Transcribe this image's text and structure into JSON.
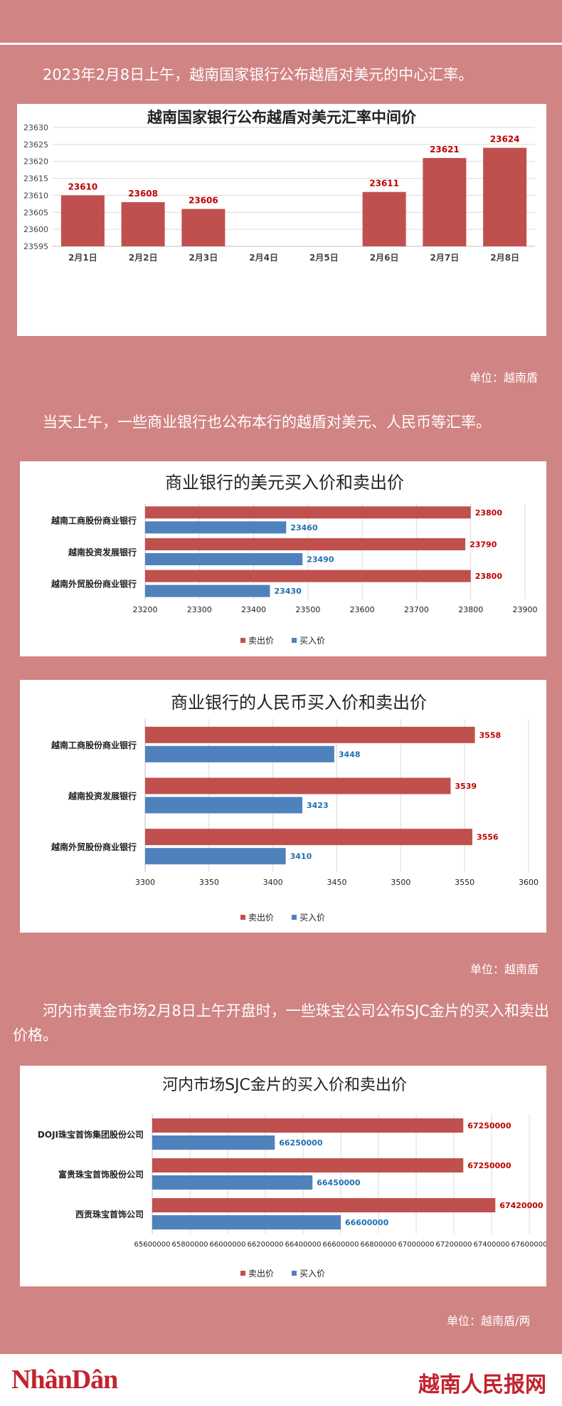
{
  "intro1": "2023年2月8日上午，越南国家银行公布越盾对美元的中心汇率。",
  "unit1": "单位：越南盾",
  "intro2": "当天上午，一些商业银行也公布本行的越盾对美元、人民币等汇率。",
  "unit2": "单位：越南盾",
  "intro3": "河内市黄金市场2月8日上午开盘时，一些珠宝公司公布SJC金片的买入和卖出价格。",
  "unit3": "单位：越南盾/两",
  "footer": {
    "logo_left": "NhânDân",
    "logo_right": "越南人民报网"
  },
  "colors": {
    "sell": "#c0504d",
    "buy": "#4f81bd",
    "sell_label": "#c00000",
    "buy_label": "#1f6fb4"
  },
  "chart_data": [
    {
      "type": "bar",
      "title": "越南国家银行公布越盾对美元汇率中间价",
      "categories": [
        "2月1日",
        "2月2日",
        "2月3日",
        "2月4日",
        "2月5日",
        "2月6日",
        "2月7日",
        "2月8日"
      ],
      "values": [
        23610,
        23608,
        23606,
        null,
        null,
        23611,
        23621,
        23624
      ],
      "ylim": [
        23595,
        23630
      ],
      "yticks": [
        23595,
        23600,
        23605,
        23610,
        23615,
        23620,
        23625,
        23630
      ],
      "grid": true
    },
    {
      "type": "bar",
      "orientation": "horizontal",
      "title": "商业银行的美元买入价和卖出价",
      "categories": [
        "越南工商股份商业银行",
        "越南投资发展银行",
        "越南外贸股份商业银行"
      ],
      "series": [
        {
          "name": "卖出价",
          "values": [
            23800,
            23790,
            23800
          ]
        },
        {
          "name": "买入价",
          "values": [
            23460,
            23490,
            23430
          ]
        }
      ],
      "xlim": [
        23200,
        23900
      ],
      "xticks": [
        23200,
        23300,
        23400,
        23500,
        23600,
        23700,
        23800,
        23900
      ],
      "legend": "bottom",
      "grid": true
    },
    {
      "type": "bar",
      "orientation": "horizontal",
      "title": "商业银行的人民币买入价和卖出价",
      "categories": [
        "越南工商股份商业银行",
        "越南投资发展银行",
        "越南外贸股份商业银行"
      ],
      "series": [
        {
          "name": "卖出价",
          "values": [
            3558,
            3539,
            3556
          ]
        },
        {
          "name": "买入价",
          "values": [
            3448,
            3423,
            3410
          ]
        }
      ],
      "xlim": [
        3300,
        3600
      ],
      "xticks": [
        3300,
        3350,
        3400,
        3450,
        3500,
        3550,
        3600
      ],
      "legend": "bottom",
      "grid": true
    },
    {
      "type": "bar",
      "orientation": "horizontal",
      "title": "河内市场SJC金片的买入价和卖出价",
      "categories": [
        "DOJI珠宝首饰集团股份公司",
        "富贵珠宝首饰股份公司",
        "西贡珠宝首饰公司"
      ],
      "series": [
        {
          "name": "卖出价",
          "values": [
            67250000,
            67250000,
            67420000
          ]
        },
        {
          "name": "买入价",
          "values": [
            66250000,
            66450000,
            66600000
          ]
        }
      ],
      "xlim": [
        65600000,
        67600000
      ],
      "xticks": [
        65600000,
        65800000,
        66000000,
        66200000,
        66400000,
        66600000,
        66800000,
        67000000,
        67200000,
        67400000,
        67600000
      ],
      "legend": "bottom",
      "grid": true
    }
  ]
}
